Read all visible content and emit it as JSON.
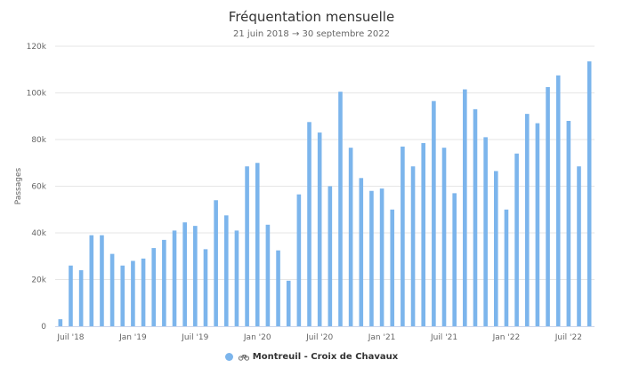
{
  "header": {
    "title": "Fréquentation mensuelle",
    "subtitle": "21 juin 2018 → 30 septembre 2022"
  },
  "legend": {
    "label": "Montreuil - Croix de Chavaux",
    "icon": "bicycle-icon"
  },
  "colors": {
    "bar": "#7cb5ec",
    "grid": "#e6e6e6",
    "axis": "#ccd6eb",
    "text": "#666666"
  },
  "chart_data": {
    "type": "bar",
    "title": "Fréquentation mensuelle",
    "subtitle": "21 juin 2018 → 30 septembre 2022",
    "xlabel": "",
    "ylabel": "Passages",
    "ylim": [
      0,
      120000
    ],
    "yticks": [
      0,
      20000,
      40000,
      60000,
      80000,
      100000,
      120000
    ],
    "ytick_labels": [
      "0",
      "20k",
      "40k",
      "60k",
      "80k",
      "100k",
      "120k"
    ],
    "xtick_labels": [
      {
        "index": 1,
        "label": "Juil '18"
      },
      {
        "index": 7,
        "label": "Jan '19"
      },
      {
        "index": 13,
        "label": "Juil '19"
      },
      {
        "index": 19,
        "label": "Jan '20"
      },
      {
        "index": 25,
        "label": "Juil '20"
      },
      {
        "index": 31,
        "label": "Jan '21"
      },
      {
        "index": 37,
        "label": "Juil '21"
      },
      {
        "index": 43,
        "label": "Jan '22"
      },
      {
        "index": 49,
        "label": "Juil '22"
      }
    ],
    "grid": true,
    "legend_position": "bottom-center",
    "categories": [
      "2018-06",
      "2018-07",
      "2018-08",
      "2018-09",
      "2018-10",
      "2018-11",
      "2018-12",
      "2019-01",
      "2019-02",
      "2019-03",
      "2019-04",
      "2019-05",
      "2019-06",
      "2019-07",
      "2019-08",
      "2019-09",
      "2019-10",
      "2019-11",
      "2019-12",
      "2020-01",
      "2020-02",
      "2020-03",
      "2020-04",
      "2020-05",
      "2020-06",
      "2020-07",
      "2020-08",
      "2020-09",
      "2020-10",
      "2020-11",
      "2020-12",
      "2021-01",
      "2021-02",
      "2021-03",
      "2021-04",
      "2021-05",
      "2021-06",
      "2021-07",
      "2021-08",
      "2021-09",
      "2021-10",
      "2021-11",
      "2021-12",
      "2022-01",
      "2022-02",
      "2022-03",
      "2022-04",
      "2022-05",
      "2022-06",
      "2022-07",
      "2022-08",
      "2022-09"
    ],
    "series": [
      {
        "name": "Montreuil - Croix de Chavaux",
        "values": [
          3000,
          26000,
          24000,
          39000,
          39000,
          31000,
          26000,
          28000,
          29000,
          33500,
          37000,
          41000,
          44500,
          43000,
          33000,
          54000,
          47500,
          41000,
          68500,
          70000,
          43500,
          32500,
          19500,
          56500,
          87500,
          83000,
          60000,
          100500,
          76500,
          63500,
          58000,
          59000,
          50000,
          77000,
          68500,
          78500,
          96500,
          76500,
          57000,
          101500,
          93000,
          81000,
          66500,
          50000,
          74000,
          91000,
          87000,
          102500,
          107500,
          88000,
          68500,
          113500
        ]
      }
    ]
  }
}
